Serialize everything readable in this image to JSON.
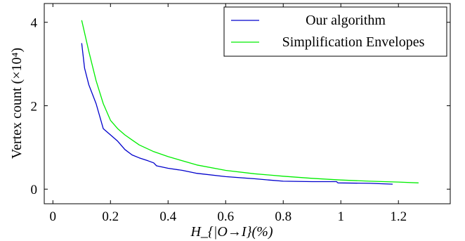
{
  "chart_data": {
    "type": "line",
    "xlabel": "H_{|O→I}(%)",
    "ylabel": "Vertex count (×10⁴)",
    "xlim": [
      -0.03,
      1.38
    ],
    "ylim": [
      -0.35,
      4.45
    ],
    "x_ticks": [
      "0",
      "0.2",
      "0.4",
      "0.6",
      "0.8",
      "1",
      "1.2"
    ],
    "y_ticks": [
      "0",
      "2",
      "4"
    ],
    "grid": false,
    "legend_position": "top-right",
    "series": [
      {
        "name": "Our algorithm",
        "color": "#0000cc",
        "x": [
          0.1,
          0.11,
          0.125,
          0.15,
          0.175,
          0.2,
          0.225,
          0.25,
          0.275,
          0.3,
          0.33,
          0.35,
          0.36,
          0.4,
          0.45,
          0.5,
          0.6,
          0.7,
          0.75,
          0.8,
          0.9,
          0.985,
          0.99,
          1.1,
          1.18
        ],
        "y": [
          3.5,
          2.9,
          2.5,
          2.05,
          1.45,
          1.3,
          1.15,
          0.95,
          0.82,
          0.75,
          0.68,
          0.63,
          0.56,
          0.5,
          0.45,
          0.38,
          0.3,
          0.25,
          0.22,
          0.19,
          0.18,
          0.18,
          0.15,
          0.14,
          0.12
        ]
      },
      {
        "name": "Simplification Envelopes",
        "color": "#00ee00",
        "x": [
          0.1,
          0.125,
          0.15,
          0.175,
          0.2,
          0.225,
          0.25,
          0.275,
          0.3,
          0.35,
          0.4,
          0.5,
          0.6,
          0.7,
          0.8,
          0.9,
          1.0,
          1.1,
          1.2,
          1.27
        ],
        "y": [
          4.05,
          3.3,
          2.6,
          2.05,
          1.65,
          1.45,
          1.3,
          1.18,
          1.06,
          0.9,
          0.78,
          0.58,
          0.45,
          0.37,
          0.31,
          0.26,
          0.22,
          0.19,
          0.17,
          0.15
        ]
      }
    ]
  }
}
